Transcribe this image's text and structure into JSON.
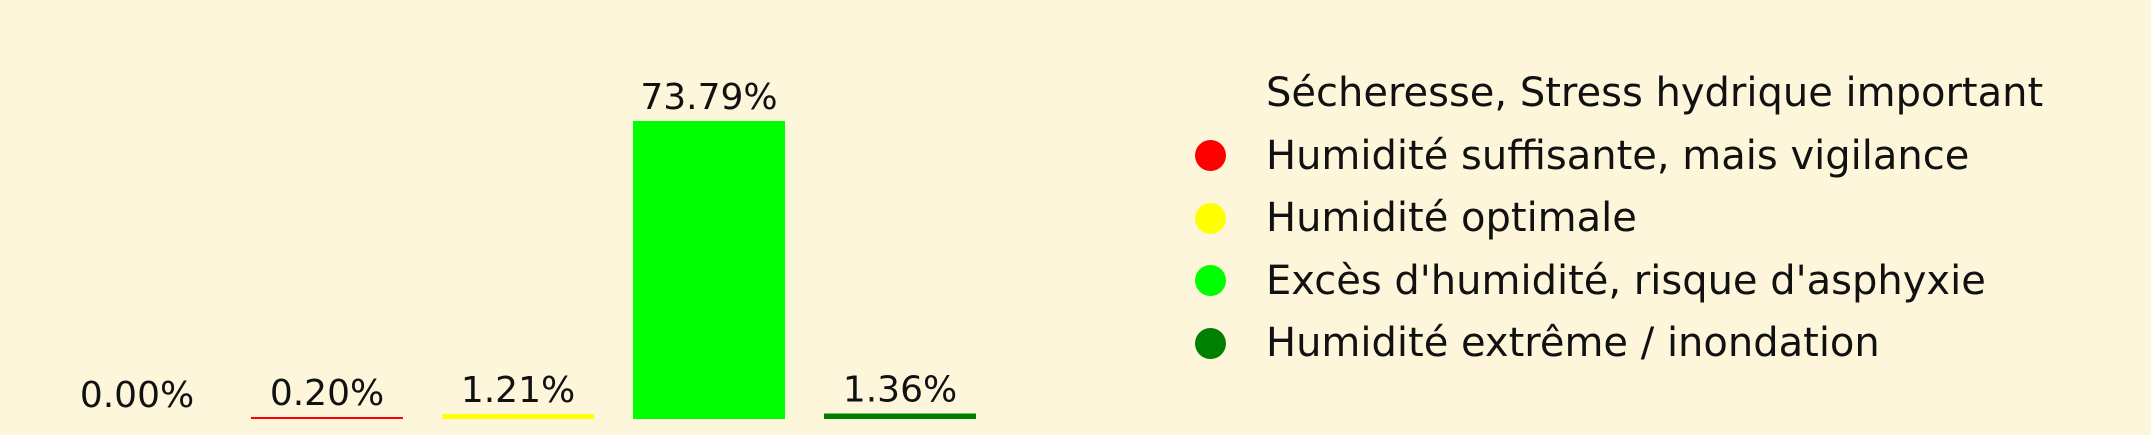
{
  "chart_data": {
    "type": "bar",
    "categories": [
      "Sécheresse, Stress hydrique important",
      "Humidité suffisante, mais vigilance",
      "Humidité optimale",
      "Excès d'humidité, risque d'asphyxie",
      "Humidité extrême / inondation"
    ],
    "values": [
      0.0,
      0.2,
      1.21,
      73.79,
      1.36
    ],
    "data_labels": [
      "0.00%",
      "0.20%",
      "1.21%",
      "73.79%",
      "1.36%"
    ],
    "colors": [
      "#fdf6da",
      "#ff0000",
      "#ffff00",
      "#00ff00",
      "#008000"
    ],
    "ylim": [
      0,
      73.79
    ],
    "grid": false,
    "legend_placement": "right"
  },
  "legend": {
    "items": [
      {
        "label": "Sécheresse, Stress hydrique important",
        "color": "#fdf6da"
      },
      {
        "label": "Humidité suffisante, mais vigilance",
        "color": "#ff0000"
      },
      {
        "label": "Humidité optimale",
        "color": "#ffff00"
      },
      {
        "label": "Excès d'humidité, risque d'asphyxie",
        "color": "#00ff00"
      },
      {
        "label": "Humidité extrême / inondation",
        "color": "#008000"
      }
    ]
  }
}
